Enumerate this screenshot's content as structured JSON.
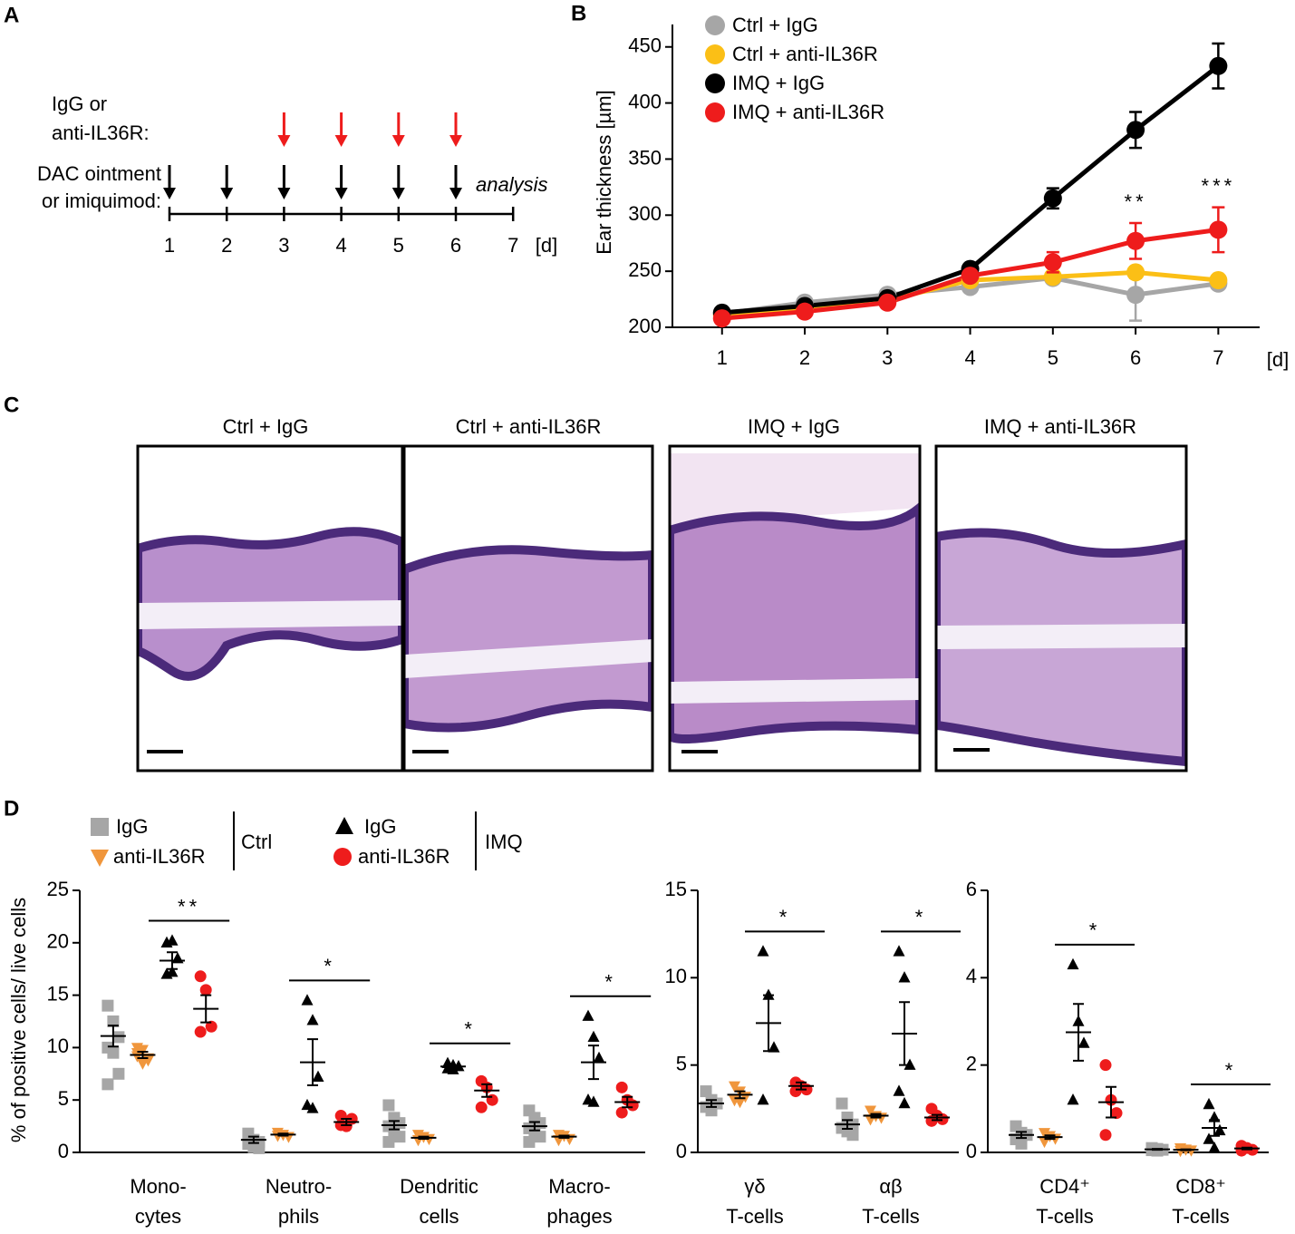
{
  "panel_labels": [
    "A",
    "B",
    "C",
    "D"
  ],
  "timeline": {
    "antibody_label": [
      "IgG or",
      "anti-IL36R:"
    ],
    "treatment_label": [
      "DAC ointment",
      "or imiquimod:"
    ],
    "days": [
      1,
      2,
      3,
      4,
      5,
      6,
      7
    ],
    "unit": "[d]",
    "antibody_days": [
      3,
      4,
      5,
      6
    ],
    "treatment_days": [
      1,
      2,
      3,
      4,
      5,
      6
    ],
    "end_label": "analysis"
  },
  "histology": {
    "titles": [
      "Ctrl + IgG",
      "Ctrl + anti-IL36R",
      "IMQ + IgG",
      "IMQ + anti-IL36R"
    ]
  },
  "chart_data": [
    {
      "type": "line",
      "x": [
        1,
        2,
        3,
        4,
        5,
        6,
        7
      ],
      "xlim": [
        0.4,
        7.5
      ],
      "xticks": [
        1,
        2,
        3,
        4,
        5,
        6,
        7
      ],
      "xlabel": "[d]",
      "ylabel": "Ear thickness [µm]",
      "ylim": [
        200,
        470
      ],
      "yticks": [
        200,
        250,
        300,
        350,
        400,
        450
      ],
      "series": [
        {
          "name": "Ctrl + IgG",
          "color": "#a6a6a6",
          "values": [
            212,
            222,
            229,
            236,
            244,
            229,
            239
          ],
          "errors": [
            3,
            3,
            3,
            3,
            3,
            23,
            3
          ]
        },
        {
          "name": "Ctrl + anti-IL36R",
          "color": "#fbbf16",
          "values": [
            211,
            217,
            224,
            242,
            245,
            249,
            242
          ],
          "errors": [
            3,
            3,
            3,
            3,
            3,
            5,
            3
          ]
        },
        {
          "name": "IMQ + IgG",
          "color": "#000000",
          "values": [
            213,
            219,
            226,
            252,
            315,
            376,
            433
          ],
          "errors": [
            3,
            3,
            3,
            3,
            9,
            16,
            20
          ]
        },
        {
          "name": "IMQ + anti-IL36R",
          "color": "#ee1c1c",
          "values": [
            208,
            214,
            222,
            246,
            258,
            277,
            287
          ],
          "errors": [
            3,
            3,
            3,
            3,
            9,
            16,
            20
          ]
        }
      ],
      "significance": [
        null,
        null,
        null,
        null,
        null,
        "**",
        "***"
      ]
    },
    {
      "type": "dotplot",
      "ylabel": "% of positive cells/ live cells",
      "legend_groups": [
        "Ctrl",
        "IMQ"
      ],
      "series": [
        {
          "name": "IgG",
          "color": "#a6a6a6",
          "marker": "square"
        },
        {
          "name": "anti-IL36R",
          "color": "#f0963c",
          "marker": "triangle-down"
        },
        {
          "name": "IgG",
          "color": "#000000",
          "marker": "triangle-up"
        },
        {
          "name": "anti-IL36R",
          "color": "#ee1c1c",
          "marker": "circle"
        }
      ],
      "panels": [
        {
          "categories": [
            [
              "Mono-",
              "cytes"
            ],
            [
              "Neutro-",
              "phils"
            ],
            [
              "Dendritic",
              "cells"
            ],
            [
              "Macro-",
              "phages"
            ]
          ],
          "ylim": [
            0,
            25
          ],
          "yticks": [
            0,
            5,
            10,
            15,
            20,
            25
          ],
          "values": [
            [
              [
                14,
                12.5,
                11,
                10,
                9.5,
                7.5,
                6.5
              ],
              [
                1.8,
                1.2,
                1.0,
                0.8,
                0.5,
                0.4
              ],
              [
                4.5,
                3.3,
                2.8,
                2.5,
                2.0,
                1.5,
                1.0
              ],
              [
                4.0,
                3.3,
                2.8,
                2.3,
                1.8,
                1.5,
                1.0
              ]
            ],
            [
              [
                9.5,
                9.8,
                9,
                9.2,
                8.5,
                8.8,
                10
              ],
              [
                1.9,
                1.7,
                1.5,
                1.6
              ],
              [
                1.7,
                1.5,
                1.3,
                1.2
              ],
              [
                1.7,
                1.6,
                1.3,
                1.2
              ]
            ],
            [
              [
                20,
                20.2,
                18.5,
                17,
                17.2
              ],
              [
                14.5,
                12.6,
                7.2,
                4.5,
                4.2
              ],
              [
                8.5,
                8.3,
                8.2,
                8.0,
                7.9
              ],
              [
                13,
                11,
                9,
                5,
                4.8
              ]
            ],
            [
              [
                16.8,
                15.5,
                12,
                11.5
              ],
              [
                3.5,
                2.5,
                3.2,
                2.6
              ],
              [
                6.8,
                6.2,
                5.0,
                4.3
              ],
              [
                6.2,
                5.0,
                4.5,
                3.8
              ]
            ]
          ],
          "means": [
            [
              11.1,
              1.2,
              2.6,
              2.5
            ],
            [
              9.3,
              1.7,
              1.4,
              1.5
            ],
            [
              18.3,
              8.6,
              8.2,
              8.6
            ],
            [
              13.7,
              2.9,
              5.9,
              4.8
            ]
          ],
          "sems": [
            [
              1.0,
              0.3,
              0.4,
              0.4
            ],
            [
              0.3,
              0.1,
              0.1,
              0.1
            ],
            [
              0.8,
              2.2,
              0.1,
              1.6
            ],
            [
              1.3,
              0.3,
              0.6,
              0.5
            ]
          ],
          "significance": [
            "**",
            "*",
            "*",
            "*"
          ]
        },
        {
          "categories": [
            [
              "γδ",
              "T-cells"
            ],
            [
              "αβ",
              "T-cells"
            ]
          ],
          "ylim": [
            0,
            15
          ],
          "yticks": [
            0,
            5,
            10,
            15
          ],
          "values": [
            [
              [
                3.5,
                3.0,
                2.8,
                2.6,
                2.4
              ],
              [
                2.8,
                2.0,
                1.6,
                1.4,
                1.2,
                1.0
              ]
            ],
            [
              [
                3.8,
                3.5,
                3.2,
                3.0,
                2.9
              ],
              [
                2.4,
                2.1,
                2.0,
                1.9
              ]
            ],
            [
              [
                11.5,
                9,
                6,
                3
              ],
              [
                11.5,
                10,
                5,
                3.5,
                2.8
              ]
            ],
            [
              [
                4.0,
                3.8,
                3.6,
                3.5
              ],
              [
                2.5,
                2.1,
                1.9,
                1.8
              ]
            ]
          ],
          "means": [
            [
              2.8,
              1.6
            ],
            [
              3.3,
              2.1
            ],
            [
              7.4,
              6.8
            ],
            [
              3.8,
              2.0
            ]
          ],
          "sems": [
            [
              0.2,
              0.25
            ],
            [
              0.2,
              0.1
            ],
            [
              1.6,
              1.8
            ],
            [
              0.2,
              0.15
            ]
          ],
          "significance": [
            "*",
            "*"
          ]
        },
        {
          "categories": [
            [
              "CD4⁺",
              "T-cells"
            ],
            [
              "CD8⁺",
              "T-cells"
            ]
          ],
          "ylim": [
            0,
            6
          ],
          "yticks": [
            0,
            2,
            4,
            6
          ],
          "values": [
            [
              [
                0.6,
                0.45,
                0.4,
                0.3,
                0.2
              ],
              [
                0.1,
                0.08,
                0.06,
                0.05,
                0.04
              ]
            ],
            [
              [
                0.45,
                0.38,
                0.32,
                0.25
              ],
              [
                0.1,
                0.07,
                0.05,
                0.04
              ]
            ],
            [
              [
                4.3,
                3.0,
                2.5,
                1.2
              ],
              [
                1.1,
                0.8,
                0.5,
                0.3,
                0.1
              ]
            ],
            [
              [
                2.0,
                1.2,
                0.9,
                0.4
              ],
              [
                0.15,
                0.1,
                0.06,
                0.04
              ]
            ]
          ],
          "means": [
            [
              0.4,
              0.07
            ],
            [
              0.35,
              0.06
            ],
            [
              2.75,
              0.56
            ],
            [
              1.15,
              0.09
            ]
          ],
          "sems": [
            [
              0.07,
              0.01
            ],
            [
              0.04,
              0.01
            ],
            [
              0.65,
              0.18
            ],
            [
              0.35,
              0.02
            ]
          ],
          "significance": [
            "*",
            "*"
          ]
        }
      ]
    }
  ]
}
